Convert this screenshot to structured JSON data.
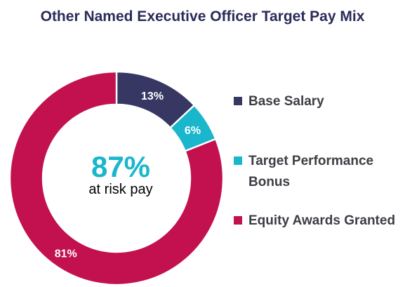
{
  "chart_data": {
    "type": "pie",
    "title": "Other Named Executive Officer Target Pay Mix",
    "categories": [
      "Base Salary",
      "Target Performance Bonus",
      "Equity Awards Granted"
    ],
    "values": [
      13,
      6,
      81
    ],
    "data_labels": [
      "13%",
      "6%",
      "81%"
    ],
    "colors": [
      "#363863",
      "#19b6cc",
      "#c2114e"
    ],
    "hole": true,
    "center_value": "87%",
    "center_label": "at risk pay",
    "center_value_color": "#19b6cc",
    "legend_placement": "right"
  }
}
